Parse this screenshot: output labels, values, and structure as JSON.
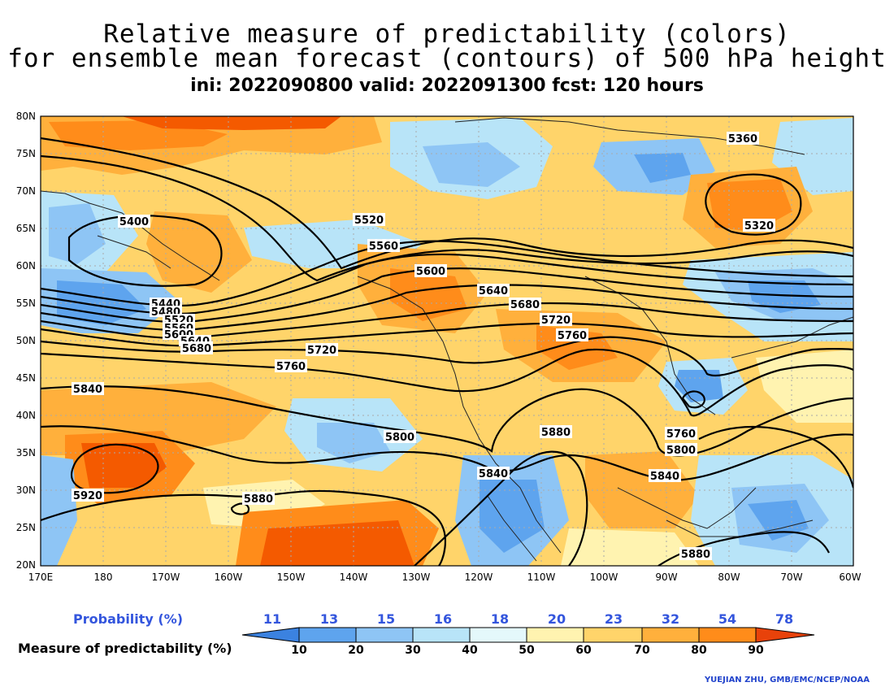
{
  "title": {
    "line1": "Relative measure of predictability (colors)",
    "line2": "for ensemble mean forecast (contours) of 500 hPa height",
    "line3": "ini: 2022090800 valid: 2022091300 fcst: 120 hours"
  },
  "axes": {
    "lat_ticks": [
      "80N",
      "75N",
      "70N",
      "65N",
      "60N",
      "55N",
      "50N",
      "45N",
      "40N",
      "35N",
      "30N",
      "25N",
      "20N"
    ],
    "lon_ticks": [
      "170E",
      "180",
      "170W",
      "160W",
      "150W",
      "140W",
      "130W",
      "120W",
      "110W",
      "100W",
      "90W",
      "80W",
      "70W",
      "60W"
    ]
  },
  "contour_labels": {
    "c5360": "5360",
    "c5320": "5320",
    "c5400": "5400",
    "c5520": "5520",
    "c5560": "5560",
    "c5600": "5600",
    "c5640": "5640",
    "c5680": "5680",
    "c5720": "5720",
    "c5760": "5760",
    "w5440": "5440",
    "w5480": "5480",
    "w5520": "5520",
    "w5560": "5560",
    "w5600": "5600",
    "w5640": "5640",
    "w5680": "5680",
    "w5720": "5720",
    "w5760": "5760",
    "c5840w": "5840",
    "c5800": "5800",
    "c5920": "5920",
    "c5880a": "5880",
    "c5840c": "5840",
    "c5880b": "5880",
    "c5760e": "5760",
    "c5800e": "5800",
    "c5840e": "5840",
    "c5880e": "5880"
  },
  "legend": {
    "probability_title": "Probability (%)",
    "measure_title": "Measure of predictability (%)",
    "probability_values": [
      "11",
      "13",
      "15",
      "16",
      "18",
      "20",
      "23",
      "32",
      "54",
      "78"
    ],
    "measure_values": [
      "10",
      "20",
      "30",
      "40",
      "50",
      "60",
      "70",
      "80",
      "90"
    ],
    "colors": [
      "#3b82e0",
      "#5ea4ee",
      "#8ec5f5",
      "#b8e4f8",
      "#e4f8fb",
      "#fff3b0",
      "#ffd46a",
      "#ffb03c",
      "#ff8c1a",
      "#f45a00",
      "#e8420a"
    ]
  },
  "credit": "YUEJIAN ZHU, GMB/EMC/NCEP/NOAA"
}
